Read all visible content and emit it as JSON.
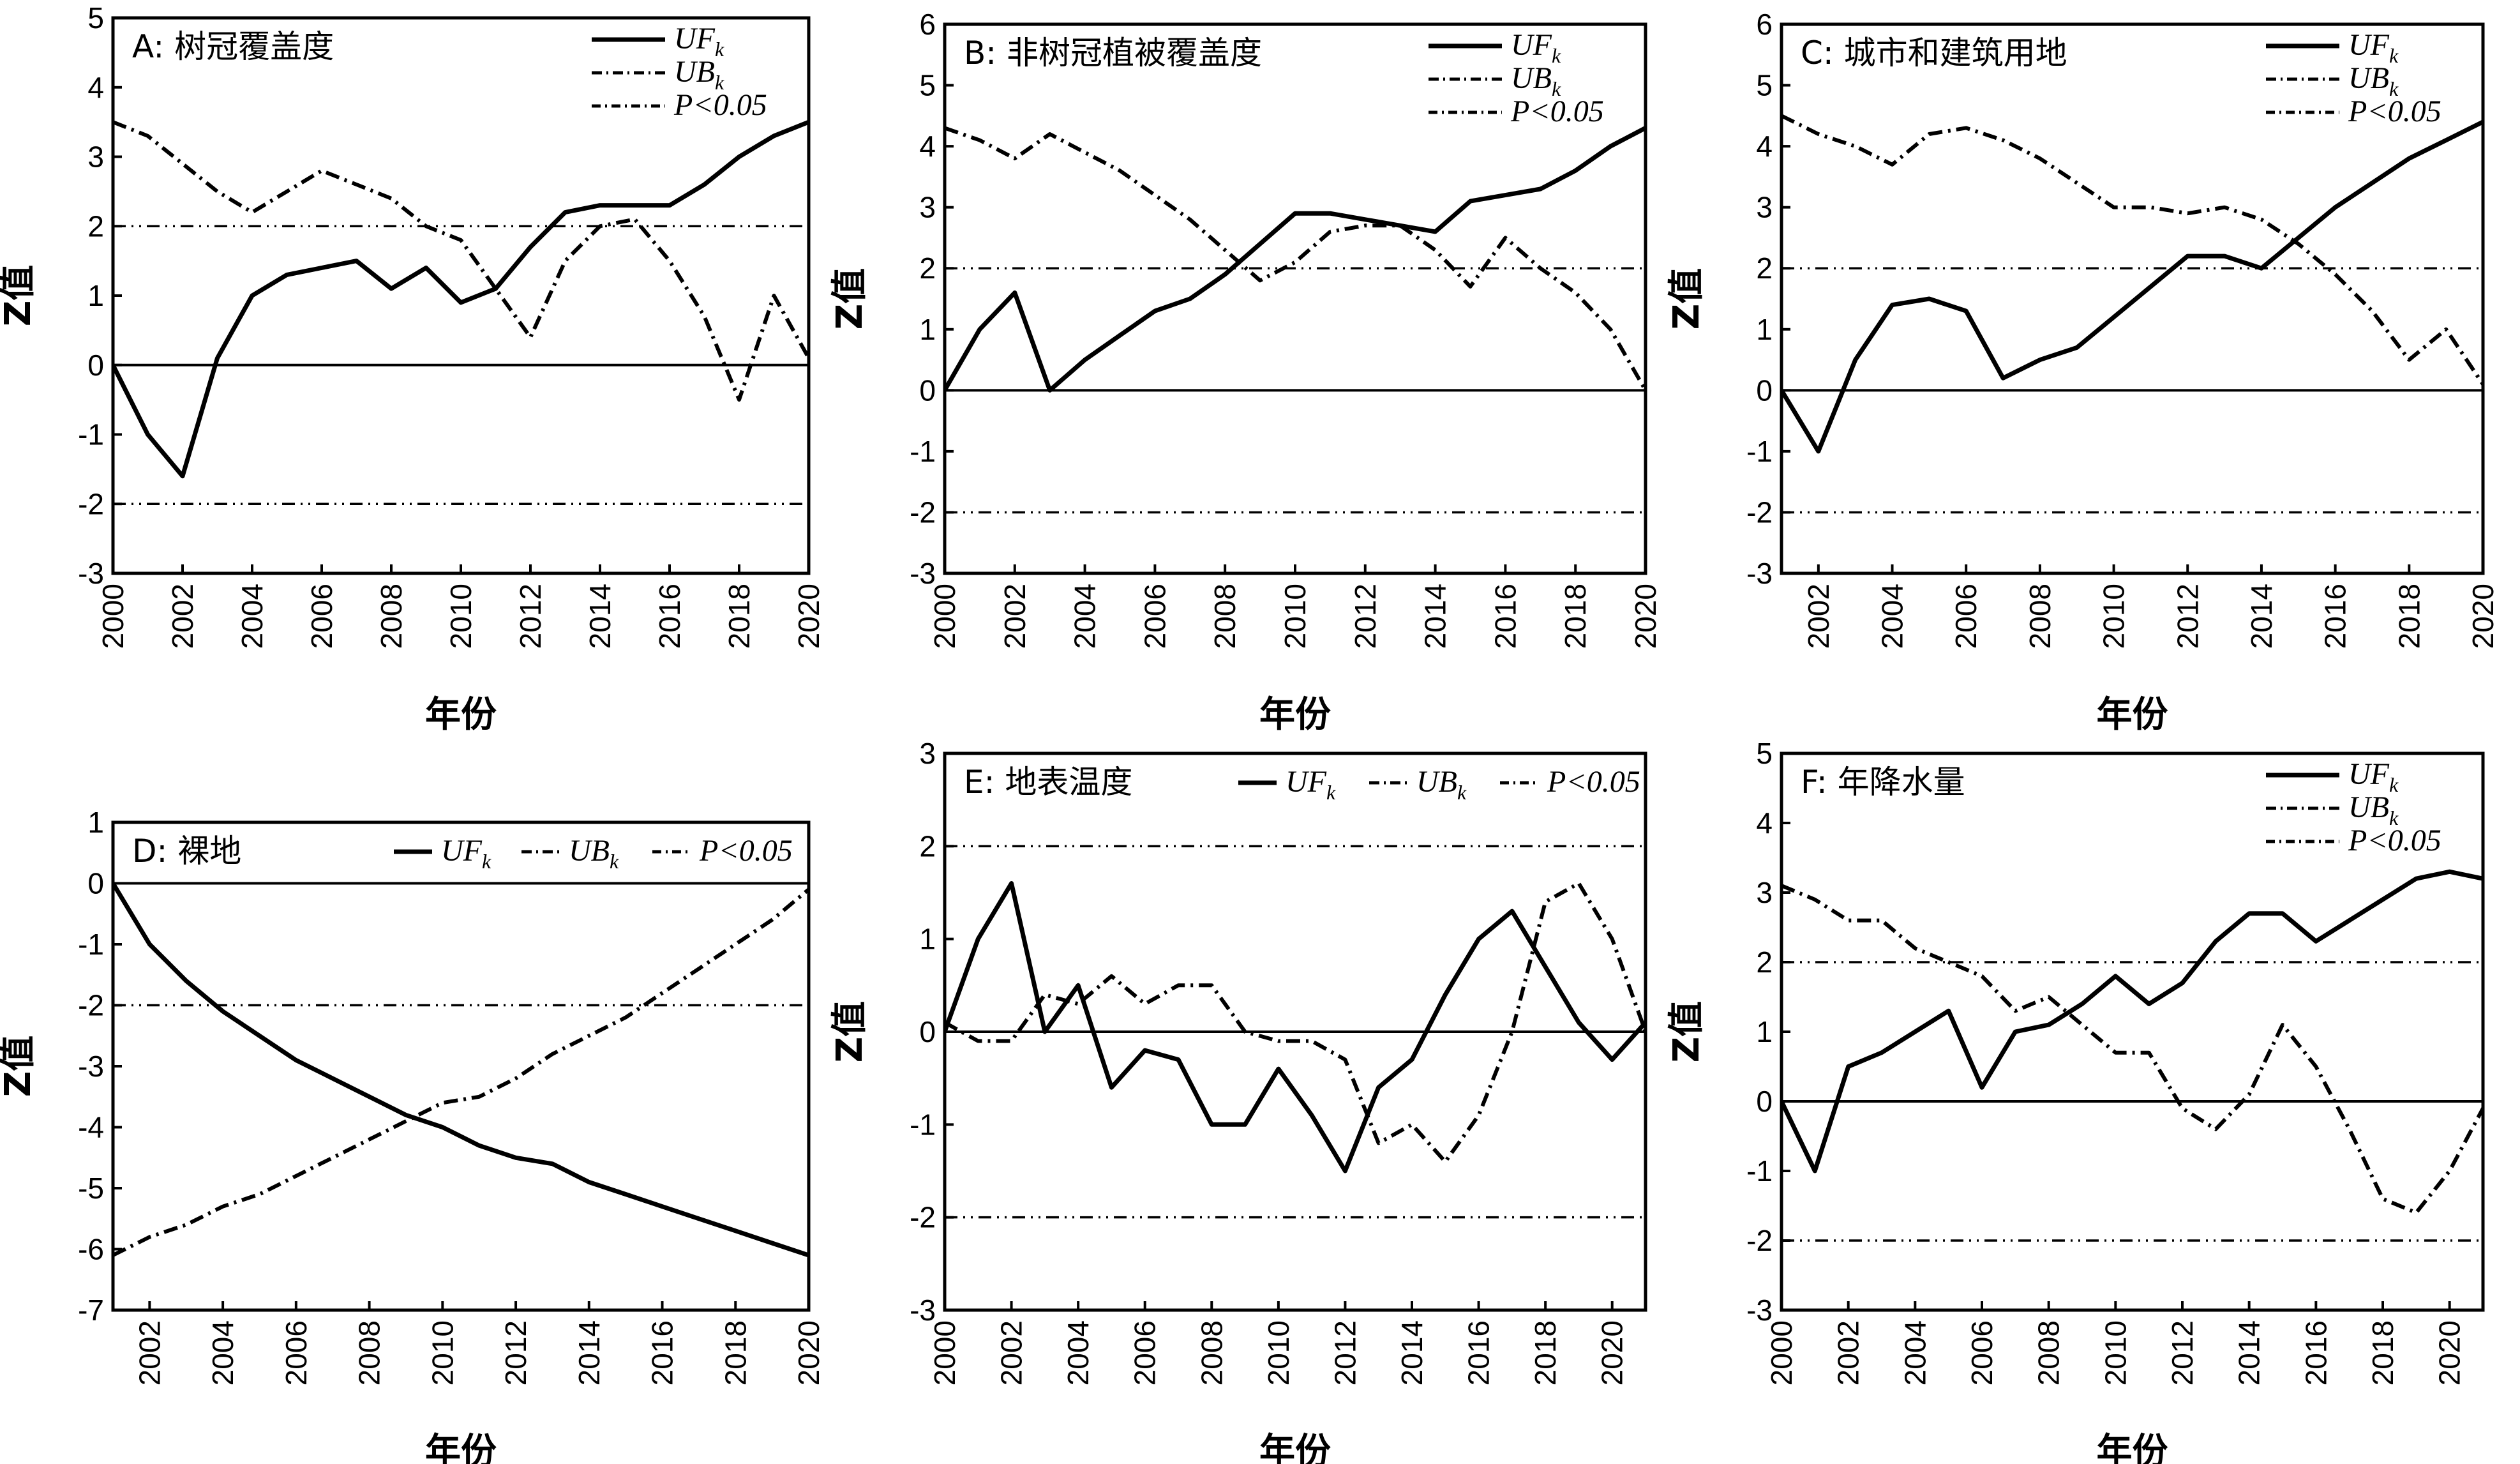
{
  "chart_data": [
    {
      "type": "line",
      "panel": "A",
      "title": "A: 树冠覆盖度",
      "xlabel": "年份",
      "ylabel": "Z值",
      "xlim": [
        2000,
        2020
      ],
      "ylim": [
        -3,
        5
      ],
      "xticks": [
        "2000",
        "2002",
        "2004",
        "2006",
        "2008",
        "2010",
        "2012",
        "2014",
        "2016",
        "2018",
        "2020"
      ],
      "yticks": [
        "-3",
        "-2",
        "-1",
        "0",
        "1",
        "2",
        "3",
        "4",
        "5"
      ],
      "x": [
        2000,
        2001,
        2002,
        2003,
        2004,
        2005,
        2006,
        2007,
        2008,
        2009,
        2010,
        2011,
        2012,
        2013,
        2014,
        2015,
        2016,
        2017,
        2018,
        2019,
        2020
      ],
      "legend_position": "top-right",
      "legend": [
        {
          "label": "UF",
          "sub": "k"
        },
        {
          "label": "UB",
          "sub": "k"
        },
        {
          "label": "P<0.05",
          "sub": ""
        }
      ],
      "series": [
        {
          "name": "UFk",
          "style": "solid",
          "values": [
            0,
            -1.0,
            -1.6,
            0.1,
            1.0,
            1.3,
            1.4,
            1.5,
            1.1,
            1.4,
            0.9,
            1.1,
            1.7,
            2.2,
            2.3,
            2.3,
            2.3,
            2.6,
            3.0,
            3.3,
            3.5
          ]
        },
        {
          "name": "UBk",
          "style": "dash",
          "values": [
            3.5,
            3.3,
            2.9,
            2.5,
            2.2,
            2.5,
            2.8,
            2.6,
            2.4,
            2.0,
            1.8,
            1.1,
            0.4,
            1.5,
            2.0,
            2.1,
            1.5,
            0.7,
            -0.5,
            1.0,
            0.1
          ]
        }
      ],
      "reference_lines": [
        2,
        -2,
        0
      ],
      "legend_layout": "vertical"
    },
    {
      "type": "line",
      "panel": "B",
      "title": "B: 非树冠植被覆盖度",
      "xlabel": "年份",
      "ylabel": "Z值",
      "xlim": [
        2000,
        2020
      ],
      "ylim": [
        -3,
        6
      ],
      "xticks": [
        "2000",
        "2002",
        "2004",
        "2006",
        "2008",
        "2010",
        "2012",
        "2014",
        "2016",
        "2018",
        "2020"
      ],
      "yticks": [
        "-3",
        "-2",
        "-1",
        "0",
        "1",
        "2",
        "3",
        "4",
        "5",
        "6"
      ],
      "x": [
        2000,
        2001,
        2002,
        2003,
        2004,
        2005,
        2006,
        2007,
        2008,
        2009,
        2010,
        2011,
        2012,
        2013,
        2014,
        2015,
        2016,
        2017,
        2018,
        2019,
        2020
      ],
      "legend_position": "top-right",
      "legend": [
        {
          "label": "UF",
          "sub": "k"
        },
        {
          "label": "UB",
          "sub": "k"
        },
        {
          "label": "P<0.05",
          "sub": ""
        }
      ],
      "series": [
        {
          "name": "UFk",
          "style": "solid",
          "values": [
            0,
            1.0,
            1.6,
            0.0,
            0.5,
            0.9,
            1.3,
            1.5,
            1.9,
            2.4,
            2.9,
            2.9,
            2.8,
            2.7,
            2.6,
            3.1,
            3.2,
            3.3,
            3.6,
            4.0,
            4.3
          ]
        },
        {
          "name": "UBk",
          "style": "dash",
          "values": [
            4.3,
            4.1,
            3.8,
            4.2,
            3.9,
            3.6,
            3.2,
            2.8,
            2.3,
            1.8,
            2.1,
            2.6,
            2.7,
            2.7,
            2.3,
            1.7,
            2.5,
            2.0,
            1.6,
            1.0,
            0.0
          ]
        }
      ],
      "reference_lines": [
        2,
        -2,
        0
      ],
      "legend_layout": "vertical"
    },
    {
      "type": "line",
      "panel": "C",
      "title": "C: 城市和建筑用地",
      "xlabel": "年份",
      "ylabel": "Z值",
      "xlim": [
        2001,
        2020
      ],
      "ylim": [
        -3,
        6
      ],
      "xticks": [
        "2002",
        "2004",
        "2006",
        "2008",
        "2010",
        "2012",
        "2014",
        "2016",
        "2018",
        "2020"
      ],
      "yticks": [
        "-3",
        "-2",
        "-1",
        "0",
        "1",
        "2",
        "3",
        "4",
        "5",
        "6"
      ],
      "x": [
        2001,
        2002,
        2003,
        2004,
        2005,
        2006,
        2007,
        2008,
        2009,
        2010,
        2011,
        2012,
        2013,
        2014,
        2015,
        2016,
        2017,
        2018,
        2019,
        2020
      ],
      "legend_position": "top-right",
      "legend": [
        {
          "label": "UF",
          "sub": "k"
        },
        {
          "label": "UB",
          "sub": "k"
        },
        {
          "label": "P<0.05",
          "sub": ""
        }
      ],
      "series": [
        {
          "name": "UFk",
          "style": "solid",
          "values": [
            0,
            -1.0,
            0.5,
            1.4,
            1.5,
            1.3,
            0.2,
            0.5,
            0.7,
            1.2,
            1.7,
            2.2,
            2.2,
            2.0,
            2.5,
            3.0,
            3.4,
            3.8,
            4.1,
            4.4
          ]
        },
        {
          "name": "UBk",
          "style": "dash",
          "values": [
            4.5,
            4.2,
            4.0,
            3.7,
            4.2,
            4.3,
            4.1,
            3.8,
            3.4,
            3.0,
            3.0,
            2.9,
            3.0,
            2.8,
            2.4,
            1.9,
            1.3,
            0.5,
            1.0,
            0.1
          ]
        }
      ],
      "reference_lines": [
        2,
        -2,
        0
      ],
      "legend_layout": "vertical"
    },
    {
      "type": "line",
      "panel": "D",
      "title": "D: 裸地",
      "xlabel": "年份",
      "ylabel": "Z值",
      "xlim": [
        2001,
        2020
      ],
      "ylim": [
        -7,
        1
      ],
      "xticks": [
        "2002",
        "2004",
        "2006",
        "2008",
        "2010",
        "2012",
        "2014",
        "2016",
        "2018",
        "2020"
      ],
      "yticks": [
        "-7",
        "-6",
        "-5",
        "-4",
        "-3",
        "-2",
        "-1",
        "0",
        "1"
      ],
      "x": [
        2001,
        2002,
        2003,
        2004,
        2005,
        2006,
        2007,
        2008,
        2009,
        2010,
        2011,
        2012,
        2013,
        2014,
        2015,
        2016,
        2017,
        2018,
        2019,
        2020
      ],
      "legend_position": "top-right",
      "legend": [
        {
          "label": "UF",
          "sub": "k"
        },
        {
          "label": "UB",
          "sub": "k"
        },
        {
          "label": "P<0.05",
          "sub": ""
        }
      ],
      "series": [
        {
          "name": "UFk",
          "style": "solid",
          "values": [
            0,
            -1.0,
            -1.6,
            -2.1,
            -2.5,
            -2.9,
            -3.2,
            -3.5,
            -3.8,
            -4.0,
            -4.3,
            -4.5,
            -4.6,
            -4.9,
            -5.1,
            -5.3,
            -5.5,
            -5.7,
            -5.9,
            -6.1
          ]
        },
        {
          "name": "UBk",
          "style": "dash",
          "values": [
            -6.1,
            -5.8,
            -5.6,
            -5.3,
            -5.1,
            -4.8,
            -4.5,
            -4.2,
            -3.9,
            -3.6,
            -3.5,
            -3.2,
            -2.8,
            -2.5,
            -2.2,
            -1.8,
            -1.4,
            -1.0,
            -0.6,
            -0.1
          ]
        }
      ],
      "reference_lines": [
        -2,
        0
      ],
      "legend_layout": "horizontal"
    },
    {
      "type": "line",
      "panel": "E",
      "title": "E: 地表温度",
      "xlabel": "年份",
      "ylabel": "Z值",
      "xlim": [
        2000,
        2021
      ],
      "ylim": [
        -3,
        3
      ],
      "xticks": [
        "2000",
        "2002",
        "2004",
        "2006",
        "2008",
        "2010",
        "2012",
        "2014",
        "2016",
        "2018",
        "2020"
      ],
      "yticks": [
        "-3",
        "-2",
        "-1",
        "0",
        "1",
        "2",
        "3"
      ],
      "x": [
        2000,
        2001,
        2002,
        2003,
        2004,
        2005,
        2006,
        2007,
        2008,
        2009,
        2010,
        2011,
        2012,
        2013,
        2014,
        2015,
        2016,
        2017,
        2018,
        2019,
        2020,
        2021
      ],
      "legend_position": "top-right",
      "legend": [
        {
          "label": "UF",
          "sub": "k"
        },
        {
          "label": "UB",
          "sub": "k"
        },
        {
          "label": "P<0.05",
          "sub": ""
        }
      ],
      "series": [
        {
          "name": "UFk",
          "style": "solid",
          "values": [
            0,
            1.0,
            1.6,
            0.0,
            0.5,
            -0.6,
            -0.2,
            -0.3,
            -1.0,
            -1.0,
            -0.4,
            -0.9,
            -1.5,
            -0.6,
            -0.3,
            0.4,
            1.0,
            1.3,
            0.7,
            0.1,
            -0.3,
            0.1
          ]
        },
        {
          "name": "UBk",
          "style": "dash",
          "values": [
            0.1,
            -0.1,
            -0.1,
            0.4,
            0.3,
            0.6,
            0.3,
            0.5,
            0.5,
            0.0,
            -0.1,
            -0.1,
            -0.3,
            -1.2,
            -1.0,
            -1.4,
            -0.9,
            0.0,
            1.4,
            1.6,
            1.0,
            0.0
          ]
        }
      ],
      "reference_lines": [
        2,
        -2,
        0
      ],
      "legend_layout": "horizontal"
    },
    {
      "type": "line",
      "panel": "F",
      "title": "F: 年降水量",
      "xlabel": "年份",
      "ylabel": "Z值",
      "xlim": [
        2000,
        2021
      ],
      "ylim": [
        -3,
        5
      ],
      "xticks": [
        "2000",
        "2002",
        "2004",
        "2006",
        "2008",
        "2010",
        "2012",
        "2014",
        "2016",
        "2018",
        "2020"
      ],
      "yticks": [
        "-3",
        "-2",
        "-1",
        "0",
        "1",
        "2",
        "3",
        "4",
        "5"
      ],
      "x": [
        2000,
        2001,
        2002,
        2003,
        2004,
        2005,
        2006,
        2007,
        2008,
        2009,
        2010,
        2011,
        2012,
        2013,
        2014,
        2015,
        2016,
        2017,
        2018,
        2019,
        2020,
        2021
      ],
      "legend_position": "top-right",
      "legend": [
        {
          "label": "UF",
          "sub": "k"
        },
        {
          "label": "UB",
          "sub": "k"
        },
        {
          "label": "P<0.05",
          "sub": ""
        }
      ],
      "series": [
        {
          "name": "UFk",
          "style": "solid",
          "values": [
            0,
            -1.0,
            0.5,
            0.7,
            1.0,
            1.3,
            0.2,
            1.0,
            1.1,
            1.4,
            1.8,
            1.4,
            1.7,
            2.3,
            2.7,
            2.7,
            2.3,
            2.6,
            2.9,
            3.2,
            3.3,
            3.2
          ]
        },
        {
          "name": "UBk",
          "style": "dash",
          "values": [
            3.1,
            2.9,
            2.6,
            2.6,
            2.2,
            2.0,
            1.8,
            1.3,
            1.5,
            1.1,
            0.7,
            0.7,
            -0.1,
            -0.4,
            0.1,
            1.1,
            0.5,
            -0.4,
            -1.4,
            -1.6,
            -1.0,
            -0.1
          ]
        }
      ],
      "reference_lines": [
        2,
        -2,
        0
      ],
      "legend_layout": "vertical"
    }
  ]
}
